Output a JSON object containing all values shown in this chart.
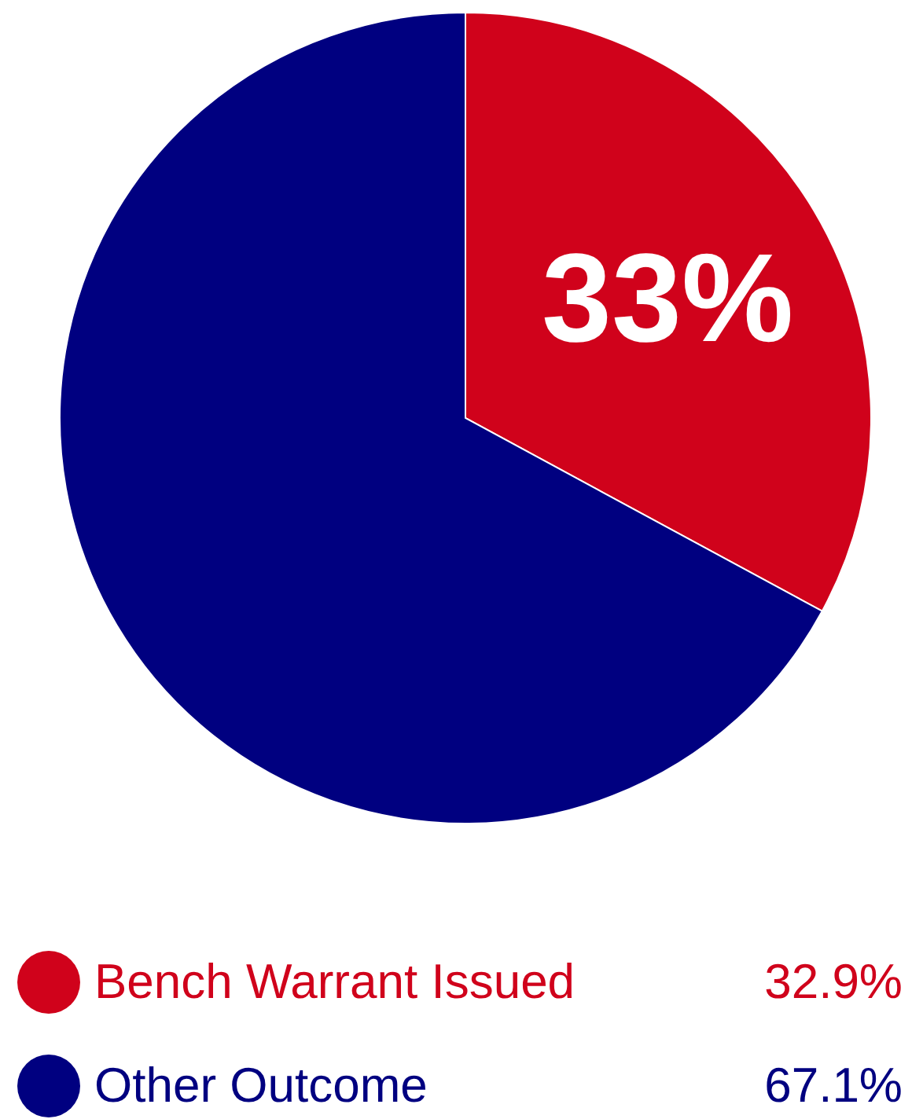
{
  "chart_data": {
    "type": "pie",
    "categories": [
      "Bench Warrant Issued",
      "Other Outcome"
    ],
    "values": [
      32.9,
      67.1
    ],
    "colors": [
      "#d0021b",
      "#000080"
    ],
    "value_labels": [
      "32.9%",
      "67.1%"
    ],
    "annotations": [
      {
        "text": "33%",
        "x": "Bench Warrant Issued"
      }
    ],
    "legend": "bottom"
  }
}
